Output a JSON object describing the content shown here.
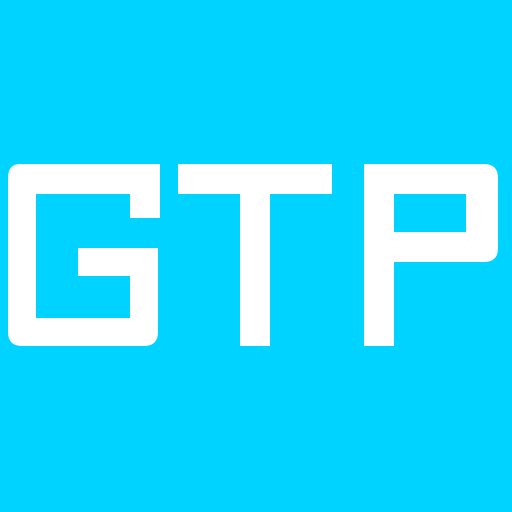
{
  "logo": {
    "text": "GTP",
    "background_color": "#00d3ff",
    "text_color": "#ffffff"
  }
}
